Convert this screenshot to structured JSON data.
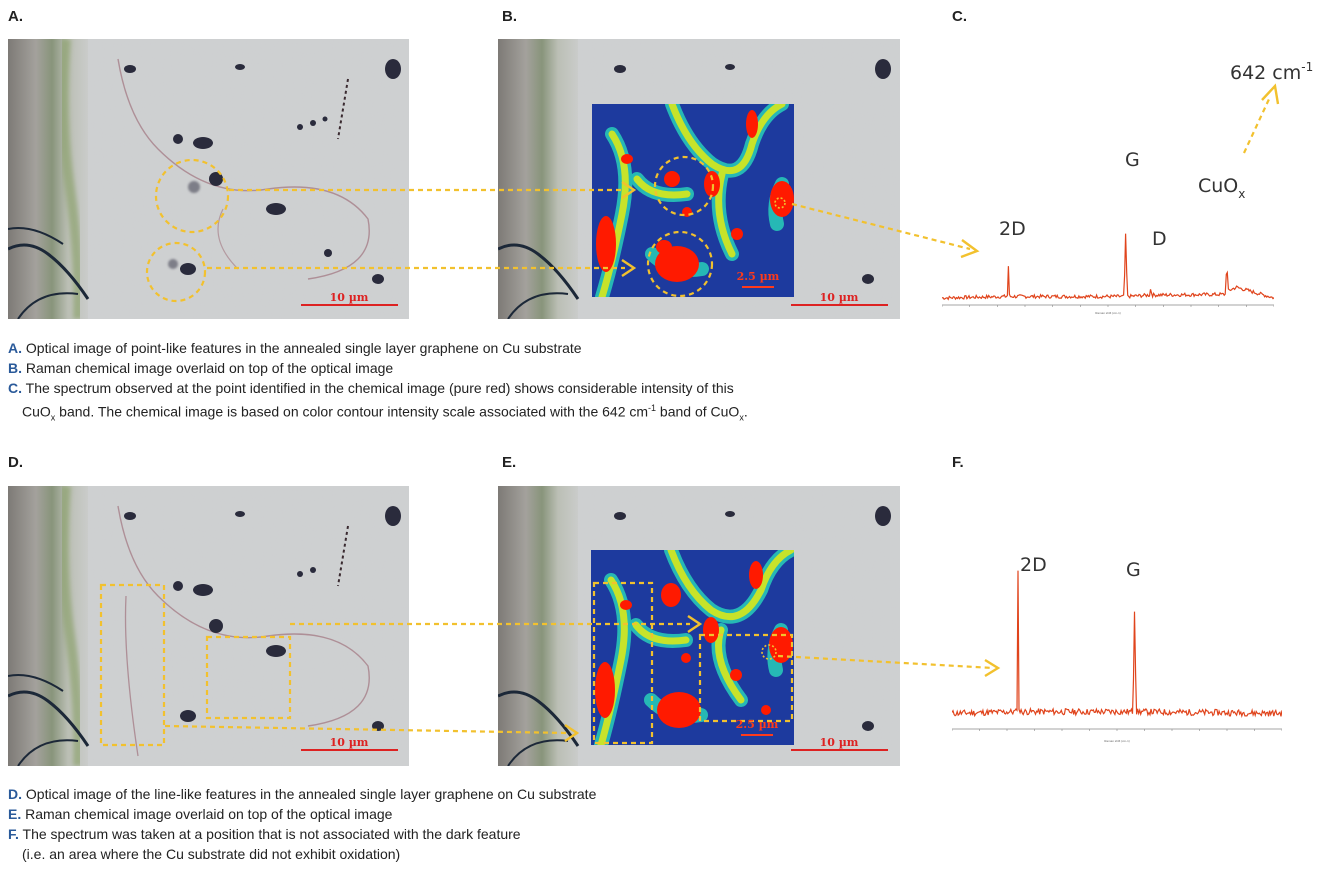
{
  "panels": {
    "a": {
      "letter": "A.",
      "scale_label": "10 µm"
    },
    "b": {
      "letter": "B.",
      "scale_label": "10 µm",
      "map_scale_label": "2.5 µm"
    },
    "c": {
      "letter": "C.",
      "annotation": "642 cm",
      "annotation_sup": "-1",
      "peaks": {
        "twoD": "2D",
        "g": "G",
        "d": "D",
        "cuox": "CuO",
        "cuox_sub": "x"
      },
      "xlabel": "Raman shift (cm-1)"
    },
    "d": {
      "letter": "D.",
      "scale_label": "10 µm"
    },
    "e": {
      "letter": "E.",
      "scale_label": "10 µm",
      "map_scale_label": "2.5 µm"
    },
    "f": {
      "letter": "F.",
      "peaks": {
        "twoD": "2D",
        "g": "G"
      },
      "xlabel": "Raman shift (cm-1)"
    }
  },
  "captions_top": {
    "a": {
      "label": "A.",
      "text": " Optical image of point-like features in the annealed single layer graphene on Cu substrate"
    },
    "b": {
      "label": "B.",
      "text": " Raman chemical image overlaid on top of the optical image"
    },
    "c": {
      "label": "C.",
      "text": " The spectrum observed at the point identified in the chemical image (pure red) shows considerable intensity of this"
    },
    "c2": {
      "p1": "CuO",
      "s1": "x",
      "p2": " band. The chemical image is based on color contour intensity scale associated with the 642 cm",
      "sup": "-1",
      "p3": " band of CuO",
      "s2": "x",
      "p4": "."
    }
  },
  "captions_bottom": {
    "d": {
      "label": "D.",
      "text": " Optical image of the line-like features in the annealed single layer graphene on Cu substrate"
    },
    "e": {
      "label": "E.",
      "text": " Raman chemical image overlaid on top of the optical image"
    },
    "f": {
      "label": "F.",
      "text": " The spectrum was taken at a position that is not associated with the dark feature"
    },
    "f2": {
      "text": "(i.e. an area where the Cu substrate did not exhibit oxidation)"
    }
  },
  "colors": {
    "annotation": "#f2c12e",
    "spectrum": "#e0441c",
    "map_blue": "#1d3a9e",
    "map_red": "#ff1a00",
    "scalebar": "#dd2222"
  },
  "chart_data": [
    {
      "type": "line",
      "title": "",
      "xlabel": "Raman shift (cm-1)",
      "ylabel": "",
      "xlim": [
        3300,
        200
      ],
      "series": [
        {
          "values": [
            [
              3300,
              0.1
            ],
            [
              2690,
              0.12
            ],
            [
              2680,
              0.55
            ],
            [
              2670,
              0.12
            ],
            [
              1600,
              0.12
            ],
            [
              1585,
              1.0
            ],
            [
              1570,
              0.12
            ],
            [
              1360,
              0.14
            ],
            [
              1350,
              0.25
            ],
            [
              1340,
              0.14
            ],
            [
              650,
              0.15
            ],
            [
              642,
              0.7
            ],
            [
              630,
              0.2
            ],
            [
              550,
              0.25
            ],
            [
              200,
              0.1
            ]
          ]
        }
      ],
      "annotations": [
        "2D",
        "G",
        "D",
        "CuOx",
        "642 cm-1"
      ]
    },
    {
      "type": "line",
      "title": "",
      "xlabel": "Raman shift (cm-1)",
      "ylabel": "",
      "xlim": [
        3300,
        200
      ],
      "series": [
        {
          "values": [
            [
              3300,
              0.1
            ],
            [
              2690,
              0.11
            ],
            [
              2680,
              1.0
            ],
            [
              2670,
              0.11
            ],
            [
              1600,
              0.11
            ],
            [
              1585,
              0.78
            ],
            [
              1570,
              0.11
            ],
            [
              200,
              0.1
            ]
          ]
        }
      ],
      "annotations": [
        "2D",
        "G"
      ]
    }
  ]
}
